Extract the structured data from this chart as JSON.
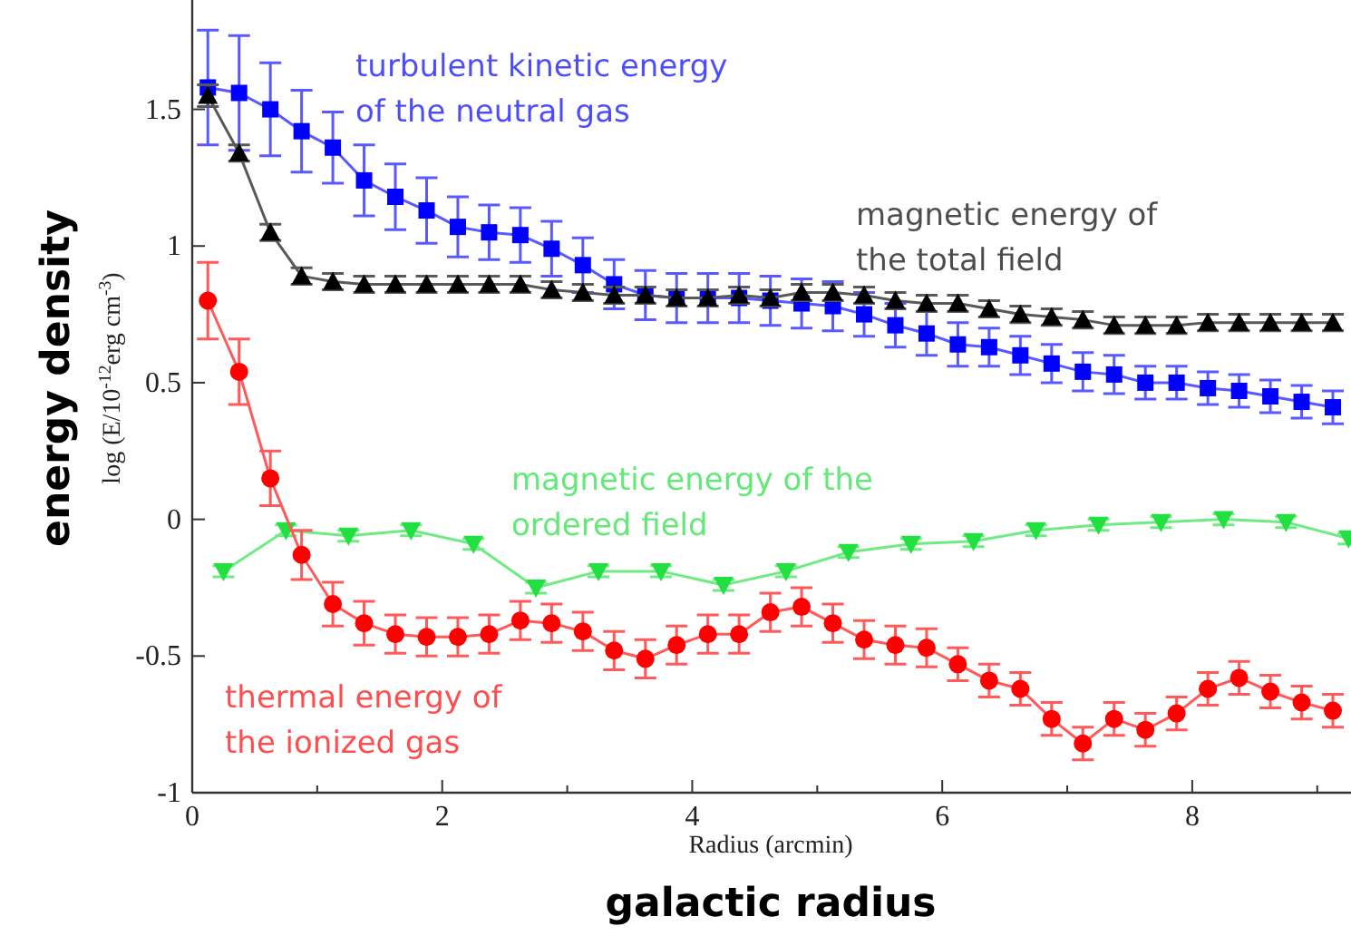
{
  "chart_data": {
    "type": "line",
    "xlabel": "Radius (arcmin)",
    "ylabel": "log (E/10$^{-12}$erg cm$^{-3}$)",
    "annotations": [
      "energy density",
      "galactic radius"
    ],
    "xlim": [
      0,
      9.27
    ],
    "ylim": [
      -1,
      1.9
    ],
    "xticks": [
      0,
      {
        "value": 1,
        "label": null
      },
      2,
      {
        "value": 3,
        "label": null
      },
      4,
      {
        "value": 5,
        "label": null
      },
      6,
      {
        "value": 7,
        "label": null
      },
      8,
      {
        "value": 9,
        "label": null
      }
    ],
    "yticks": [
      -1,
      -0.5,
      0,
      0.5,
      1,
      1.5
    ],
    "line_style": "solid",
    "series": [
      {
        "name": "turbulent kinetic energy of the neutral gas",
        "color": "#0000ff",
        "marker": "square",
        "x": [
          0.125,
          0.375,
          0.625,
          0.875,
          1.125,
          1.375,
          1.625,
          1.875,
          2.125,
          2.375,
          2.625,
          2.875,
          3.125,
          3.375,
          3.625,
          3.875,
          4.125,
          4.375,
          4.625,
          4.875,
          5.125,
          5.375,
          5.625,
          5.875,
          6.125,
          6.375,
          6.625,
          6.875,
          7.125,
          7.375,
          7.625,
          7.875,
          8.125,
          8.375,
          8.625,
          8.875,
          9.125
        ],
        "values": [
          1.58,
          1.56,
          1.5,
          1.42,
          1.36,
          1.24,
          1.18,
          1.13,
          1.07,
          1.05,
          1.04,
          0.99,
          0.93,
          0.86,
          0.82,
          0.81,
          0.81,
          0.81,
          0.8,
          0.79,
          0.78,
          0.75,
          0.71,
          0.68,
          0.64,
          0.63,
          0.6,
          0.57,
          0.54,
          0.53,
          0.5,
          0.5,
          0.48,
          0.47,
          0.45,
          0.43,
          0.41
        ],
        "errors": [
          0.21,
          0.21,
          0.17,
          0.15,
          0.13,
          0.13,
          0.12,
          0.12,
          0.11,
          0.1,
          0.1,
          0.1,
          0.1,
          0.09,
          0.09,
          0.09,
          0.09,
          0.09,
          0.09,
          0.09,
          0.09,
          0.08,
          0.08,
          0.08,
          0.08,
          0.07,
          0.07,
          0.07,
          0.07,
          0.07,
          0.06,
          0.06,
          0.06,
          0.06,
          0.06,
          0.06,
          0.06
        ]
      },
      {
        "name": "magnetic energy of the total field",
        "color": "#000000",
        "marker": "triangle",
        "x": [
          0.125,
          0.375,
          0.625,
          0.875,
          1.125,
          1.375,
          1.625,
          1.875,
          2.125,
          2.375,
          2.625,
          2.875,
          3.125,
          3.375,
          3.625,
          3.875,
          4.125,
          4.375,
          4.625,
          4.875,
          5.125,
          5.375,
          5.625,
          5.875,
          6.125,
          6.375,
          6.625,
          6.875,
          7.125,
          7.375,
          7.625,
          7.875,
          8.125,
          8.375,
          8.625,
          8.875,
          9.125
        ],
        "values": [
          1.55,
          1.34,
          1.05,
          0.89,
          0.87,
          0.86,
          0.86,
          0.86,
          0.86,
          0.86,
          0.86,
          0.84,
          0.83,
          0.82,
          0.82,
          0.81,
          0.81,
          0.82,
          0.81,
          0.83,
          0.83,
          0.82,
          0.8,
          0.79,
          0.79,
          0.77,
          0.75,
          0.74,
          0.73,
          0.71,
          0.71,
          0.71,
          0.72,
          0.72,
          0.72,
          0.72,
          0.72
        ],
        "errors": [
          0.04,
          0.03,
          0.03,
          0.03,
          0.03,
          0.03,
          0.03,
          0.03,
          0.03,
          0.03,
          0.03,
          0.03,
          0.03,
          0.03,
          0.03,
          0.03,
          0.03,
          0.03,
          0.03,
          0.03,
          0.03,
          0.03,
          0.03,
          0.03,
          0.03,
          0.03,
          0.03,
          0.03,
          0.03,
          0.03,
          0.03,
          0.03,
          0.03,
          0.03,
          0.03,
          0.03,
          0.03
        ]
      },
      {
        "name": "magnetic energy of the ordered field",
        "color": "#22e040",
        "marker": "triangle-down",
        "x": [
          0.25,
          0.75,
          1.25,
          1.75,
          2.25,
          2.75,
          3.25,
          3.75,
          4.25,
          4.75,
          5.25,
          5.75,
          6.25,
          6.75,
          7.25,
          7.75,
          8.25,
          8.75,
          9.25
        ],
        "values": [
          -0.19,
          -0.04,
          -0.06,
          -0.04,
          -0.09,
          -0.25,
          -0.19,
          -0.19,
          -0.24,
          -0.19,
          -0.12,
          -0.09,
          -0.08,
          -0.04,
          -0.02,
          -0.01,
          0,
          -0.01,
          -0.07
        ],
        "errors": [
          0.02,
          0.02,
          0.02,
          0.02,
          0.02,
          0.02,
          0.02,
          0.02,
          0.02,
          0.02,
          0.02,
          0.02,
          0.02,
          0.02,
          0.02,
          0.02,
          0.02,
          0.02,
          0.02
        ]
      },
      {
        "name": "thermal energy of the ionized gas",
        "color": "#ff0000",
        "marker": "circle",
        "x": [
          0.125,
          0.375,
          0.625,
          0.875,
          1.125,
          1.375,
          1.625,
          1.875,
          2.125,
          2.375,
          2.625,
          2.875,
          3.125,
          3.375,
          3.625,
          3.875,
          4.125,
          4.375,
          4.625,
          4.875,
          5.125,
          5.375,
          5.625,
          5.875,
          6.125,
          6.375,
          6.625,
          6.875,
          7.125,
          7.375,
          7.625,
          7.875,
          8.125,
          8.375,
          8.625,
          8.875,
          9.125
        ],
        "values": [
          0.8,
          0.54,
          0.15,
          -0.13,
          -0.31,
          -0.38,
          -0.42,
          -0.43,
          -0.43,
          -0.42,
          -0.37,
          -0.38,
          -0.41,
          -0.48,
          -0.51,
          -0.46,
          -0.42,
          -0.42,
          -0.34,
          -0.32,
          -0.38,
          -0.44,
          -0.46,
          -0.47,
          -0.53,
          -0.59,
          -0.62,
          -0.73,
          -0.82,
          -0.73,
          -0.77,
          -0.71,
          -0.62,
          -0.58,
          -0.63,
          -0.67,
          -0.7
        ],
        "errors": [
          0.14,
          0.12,
          0.1,
          0.09,
          0.08,
          0.08,
          0.07,
          0.07,
          0.07,
          0.07,
          0.07,
          0.07,
          0.07,
          0.07,
          0.07,
          0.07,
          0.07,
          0.07,
          0.07,
          0.07,
          0.07,
          0.07,
          0.07,
          0.07,
          0.06,
          0.06,
          0.06,
          0.06,
          0.06,
          0.06,
          0.06,
          0.06,
          0.06,
          0.06,
          0.06,
          0.06,
          0.06
        ]
      }
    ]
  }
}
